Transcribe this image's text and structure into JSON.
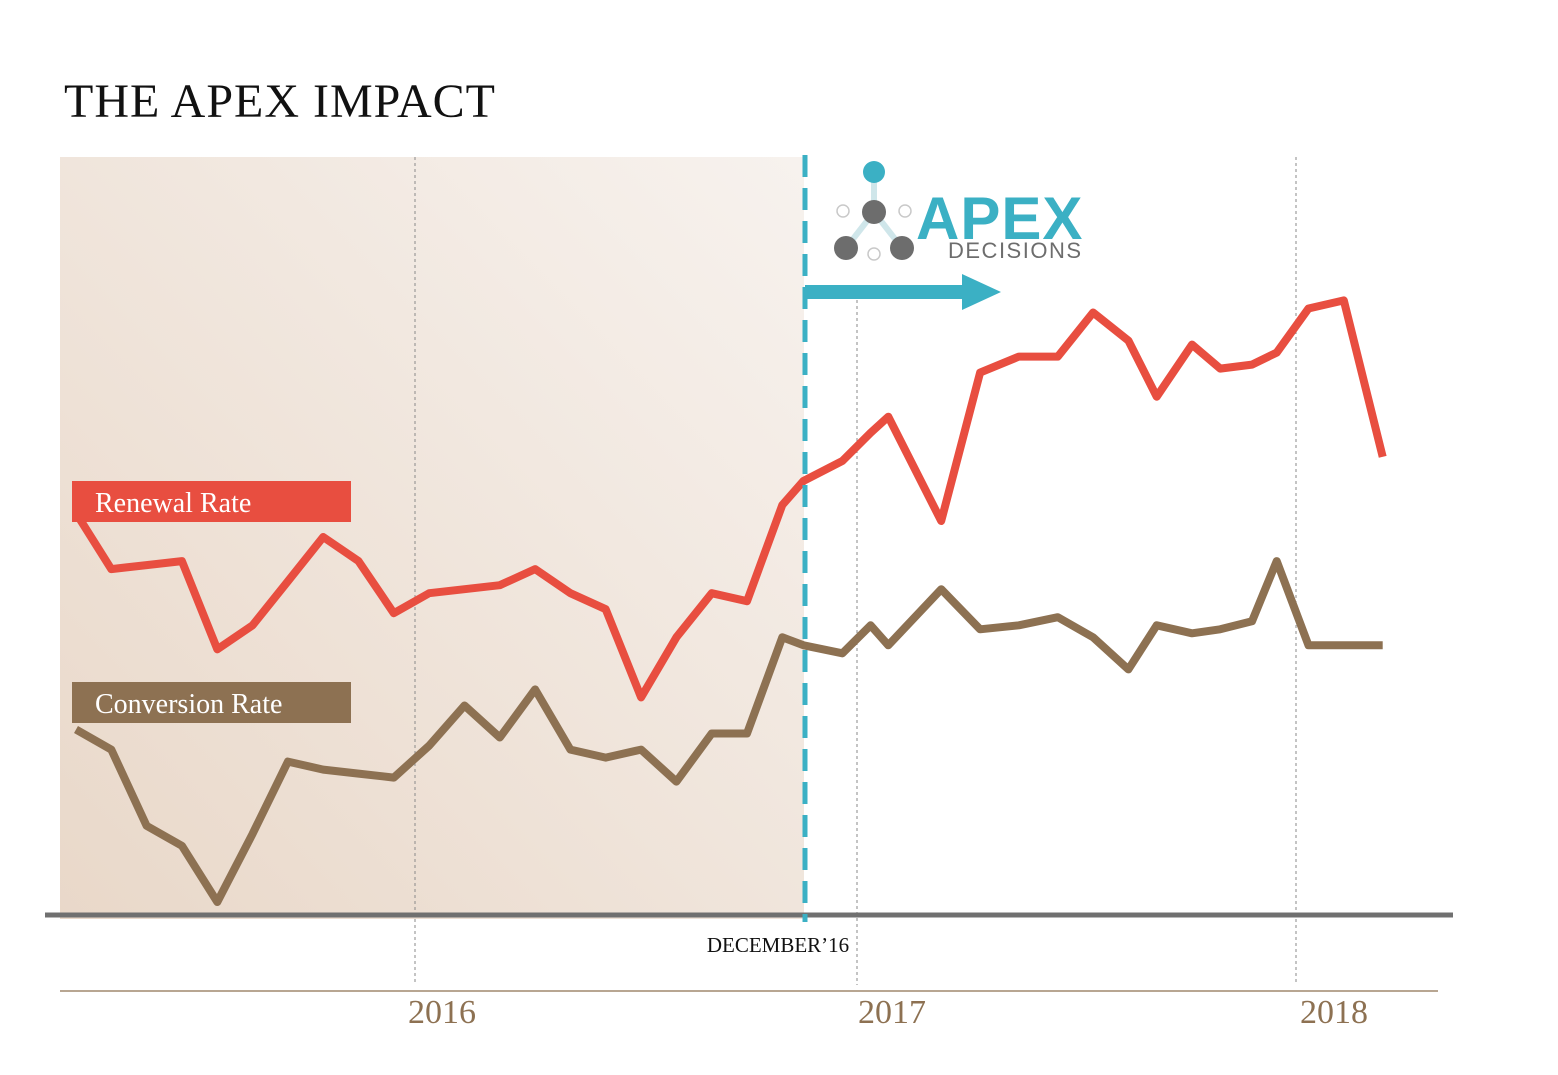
{
  "colors": {
    "renewal": "#e84e40",
    "conversion": "#8d7152",
    "accent": "#3bb0c4",
    "baseline": "#707070",
    "year_text": "#8d7152",
    "shade_start": "#e9d8c9",
    "shade_end": "#f6f0ec"
  },
  "chart_data": {
    "type": "line",
    "title": "THE APEX IMPACT",
    "xlabel": "",
    "ylabel": "",
    "x_ticks": [
      "2016",
      "2017",
      "2018"
    ],
    "x_tick_positions": [
      11,
      23,
      35
    ],
    "xlim": [
      1,
      39
    ],
    "ylim": [
      0,
      100
    ],
    "grid": "vertical dotted at year boundaries",
    "annotation": {
      "label": "DECEMBER’16",
      "x": 21.6,
      "style": "dashed vertical divider; shaded region to the left (before)"
    },
    "series": [
      {
        "name": "Renewal Rate",
        "x": [
          1,
          2,
          3,
          4,
          5,
          6,
          7,
          8,
          9,
          10,
          11,
          12,
          13,
          14,
          15,
          16,
          17,
          18,
          19,
          20,
          21,
          21.6,
          22.7,
          23.5,
          24,
          25.5,
          26.6,
          27.7,
          28.8,
          29.8,
          30.8,
          31.6,
          32.6,
          33.4,
          34.3,
          35,
          35.9,
          36.9,
          38
        ],
        "values": [
          51,
          44,
          44.5,
          45,
          34,
          37,
          42.5,
          48,
          45,
          38.5,
          41,
          41.5,
          42,
          44,
          41,
          39,
          28,
          35.5,
          41,
          40,
          52,
          55,
          57.5,
          61,
          63,
          50,
          68.5,
          70.5,
          70.5,
          76,
          72.5,
          65.5,
          72,
          69,
          69.5,
          71,
          76.5,
          77.5,
          58
        ]
      },
      {
        "name": "Conversion Rate",
        "x": [
          1,
          2,
          3,
          4,
          5,
          6,
          7,
          8,
          9,
          10,
          11,
          12,
          13,
          14,
          15,
          16,
          17,
          18,
          19,
          20,
          21,
          21.6,
          22.7,
          23.5,
          24,
          25.5,
          26.6,
          27.7,
          28.8,
          29.8,
          30.8,
          31.6,
          32.6,
          33.4,
          34.3,
          35,
          35.9,
          36.9,
          38
        ],
        "values": [
          24,
          21.5,
          12,
          9.5,
          2.5,
          11,
          20,
          19,
          18.5,
          18,
          22,
          27,
          23,
          29,
          21.5,
          20.5,
          21.5,
          17.5,
          23.5,
          23.5,
          35.5,
          34.5,
          33.5,
          37,
          34.5,
          41.5,
          36.5,
          37,
          38,
          35.5,
          31.5,
          37,
          36,
          36.5,
          37.5,
          45,
          34.5,
          34.5,
          34.5
        ]
      }
    ]
  },
  "legend": {
    "renewal_label": "Renewal Rate",
    "conversion_label": "Conversion Rate"
  },
  "logo": {
    "brand": "APEX",
    "tagline": "DECISIONS"
  }
}
